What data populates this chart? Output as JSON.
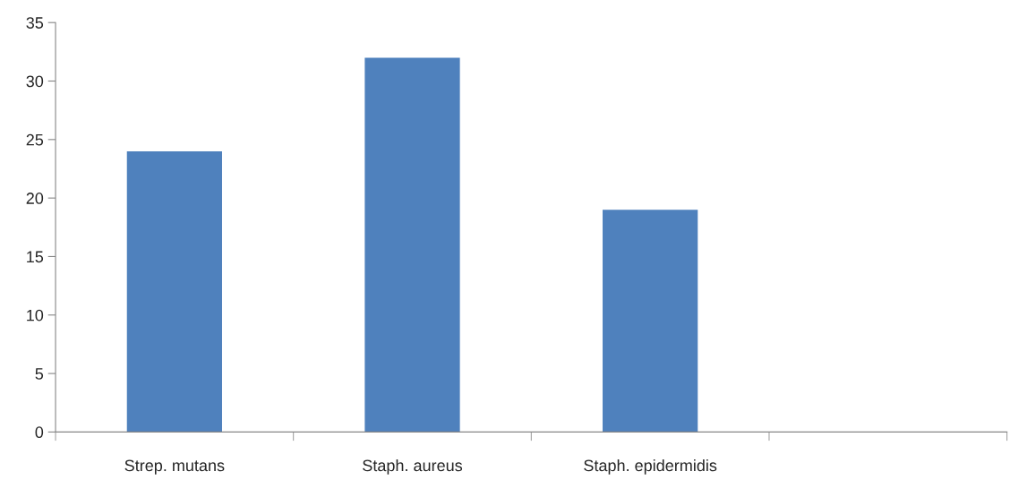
{
  "chart_data": {
    "type": "bar",
    "categories": [
      "Strep. mutans",
      "Staph. aureus",
      "Staph. epidermidis",
      null
    ],
    "values": [
      24,
      32,
      19,
      null
    ],
    "color": "#4f81bd",
    "ylim": [
      0,
      35
    ],
    "yticks": [
      0,
      5,
      10,
      15,
      20,
      25,
      30,
      35
    ],
    "grid": false,
    "legend": false
  }
}
